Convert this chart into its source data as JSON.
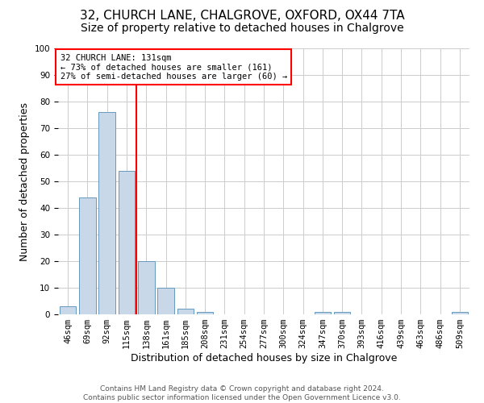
{
  "title": "32, CHURCH LANE, CHALGROVE, OXFORD, OX44 7TA",
  "subtitle": "Size of property relative to detached houses in Chalgrove",
  "xlabel": "Distribution of detached houses by size in Chalgrove",
  "ylabel": "Number of detached properties",
  "bins": [
    "46sqm",
    "69sqm",
    "92sqm",
    "115sqm",
    "138sqm",
    "161sqm",
    "185sqm",
    "208sqm",
    "231sqm",
    "254sqm",
    "277sqm",
    "300sqm",
    "324sqm",
    "347sqm",
    "370sqm",
    "393sqm",
    "416sqm",
    "439sqm",
    "463sqm",
    "486sqm",
    "509sqm"
  ],
  "values": [
    3,
    44,
    76,
    54,
    20,
    10,
    2,
    1,
    0,
    0,
    0,
    0,
    0,
    1,
    1,
    0,
    0,
    0,
    0,
    0,
    1
  ],
  "bar_color": "#c8d8e8",
  "bar_edge_color": "#6699bb",
  "red_line_index": 4,
  "annotation_line1": "32 CHURCH LANE: 131sqm",
  "annotation_line2": "← 73% of detached houses are smaller (161)",
  "annotation_line3": "27% of semi-detached houses are larger (60) →",
  "annotation_box_color": "white",
  "annotation_box_edge_color": "red",
  "red_line_color": "red",
  "footer": "Contains HM Land Registry data © Crown copyright and database right 2024.\nContains public sector information licensed under the Open Government Licence v3.0.",
  "ylim": [
    0,
    100
  ],
  "yticks": [
    0,
    10,
    20,
    30,
    40,
    50,
    60,
    70,
    80,
    90,
    100
  ],
  "title_fontsize": 11,
  "subtitle_fontsize": 10,
  "axis_label_fontsize": 9,
  "tick_fontsize": 7.5,
  "annotation_fontsize": 7.5,
  "footer_fontsize": 6.5,
  "background_color": "white",
  "grid_color": "#cccccc"
}
